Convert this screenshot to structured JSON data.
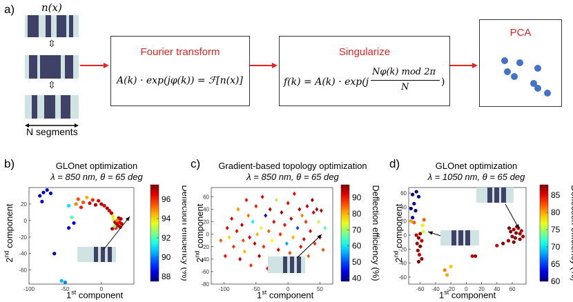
{
  "panel_a": {
    "label": "a)",
    "nx_label": "n(x)",
    "segments_label": "N segments",
    "box1_title": "Fourier transform",
    "box1_formula": "A(k) · exp(jφ(k)) = ℱ[n(x)]",
    "box2_title": "Singularize",
    "box2_formula_left": "f(k) = A(k) · exp(j",
    "box2_formula_num": "Nφ(k) mod 2π",
    "box2_formula_den": "N",
    "box2_formula_right": ")",
    "box3_title": "PCA",
    "colors": {
      "accent_red": "#e8231f",
      "pca_dot": "#4472c4",
      "stripe_dark": "#3f4266",
      "stripe_light": "#cfe3e3"
    }
  },
  "panel_b": {
    "label": "b)",
    "title1": "GLOnet optimization",
    "title2": "λ = 850 nm, θ = 65 deg",
    "xlabel_main": "1",
    "xlabel_sup": "st",
    "xlabel_rest": " component",
    "ylabel_main": "2",
    "ylabel_sup": "nd",
    "ylabel_rest": " component",
    "cbar_label": "Deflection efficiency (%)"
  },
  "panel_c": {
    "label": "c)",
    "title1": "Gradient-based topology optimization",
    "title2": "λ = 850 nm, θ = 65 deg",
    "xlabel_main": "1",
    "xlabel_sup": "st",
    "xlabel_rest": " component",
    "ylabel_main": "2",
    "ylabel_sup": "nd",
    "ylabel_rest": " component",
    "cbar_label": "Deflection efficiency (%)"
  },
  "panel_d": {
    "label": "d)",
    "title1": "GLOnet optimization",
    "title2": "λ = 1050 nm, θ = 65 deg",
    "xlabel_main": "1",
    "xlabel_sup": "st",
    "xlabel_rest": " component",
    "ylabel_main": "2",
    "ylabel_sup": "nd",
    "ylabel_rest": " component",
    "cbar_label": "Deflection efficiency (%)"
  },
  "chart_data": [
    {
      "type": "scatter",
      "panel": "b",
      "marker": "circle",
      "xticks": [
        -100,
        -50,
        0
      ],
      "yticks": [
        -60,
        -40,
        -20,
        0,
        20
      ],
      "xlim": [
        -100,
        45
      ],
      "ylim": [
        -77,
        40
      ],
      "colorbar": {
        "ticks": [
          88,
          90,
          92,
          94,
          96
        ],
        "range": [
          87.5,
          97.5
        ]
      },
      "points": [
        {
          "x": -85,
          "y": 30,
          "c": 88
        },
        {
          "x": -80,
          "y": 34,
          "c": 88
        },
        {
          "x": -75,
          "y": 37,
          "c": 88.2
        },
        {
          "x": -82,
          "y": 23,
          "c": 88.5
        },
        {
          "x": -70,
          "y": 33,
          "c": 88.3
        },
        {
          "x": -65,
          "y": -40,
          "c": 88
        },
        {
          "x": -55,
          "y": -73,
          "c": 90.5
        },
        {
          "x": -50,
          "y": -75,
          "c": 90
        },
        {
          "x": -45,
          "y": -9,
          "c": 88.4
        },
        {
          "x": -45,
          "y": 18,
          "c": 91
        },
        {
          "x": -41,
          "y": 4,
          "c": 92
        },
        {
          "x": -38,
          "y": -3,
          "c": 88.5
        },
        {
          "x": -35,
          "y": 20,
          "c": 95
        },
        {
          "x": -32,
          "y": 26,
          "c": 95.5
        },
        {
          "x": -28,
          "y": 16,
          "c": 96
        },
        {
          "x": -25,
          "y": 22,
          "c": 95.5
        },
        {
          "x": -20,
          "y": 28,
          "c": 94.5
        },
        {
          "x": -16,
          "y": 21,
          "c": 96.5
        },
        {
          "x": -12,
          "y": 25,
          "c": 96
        },
        {
          "x": -8,
          "y": 19,
          "c": 97
        },
        {
          "x": -4,
          "y": 24,
          "c": 96.5
        },
        {
          "x": 0,
          "y": 20,
          "c": 97
        },
        {
          "x": 4,
          "y": 18,
          "c": 96.7
        },
        {
          "x": 8,
          "y": 15,
          "c": 97
        },
        {
          "x": 11,
          "y": 12,
          "c": 96.5
        },
        {
          "x": 14,
          "y": 9,
          "c": 97
        },
        {
          "x": 16,
          "y": 5,
          "c": 94
        },
        {
          "x": 17,
          "y": 1,
          "c": 93
        },
        {
          "x": 19,
          "y": -2,
          "c": 96.8
        },
        {
          "x": 21,
          "y": -4,
          "c": 97
        },
        {
          "x": 23,
          "y": -6,
          "c": 97
        },
        {
          "x": 25,
          "y": -2,
          "c": 96.5
        },
        {
          "x": 26,
          "y": -8,
          "c": 97
        },
        {
          "x": 24,
          "y": 3,
          "c": 97
        },
        {
          "x": 28,
          "y": -4,
          "c": 96.8
        },
        {
          "x": 20,
          "y": -9,
          "c": 96
        },
        {
          "x": 27,
          "y": 2,
          "c": 97
        },
        {
          "x": 18,
          "y": -7,
          "c": 92.5
        },
        {
          "x": 22,
          "y": 0,
          "c": 95
        },
        {
          "x": 15,
          "y": -10,
          "c": 97
        }
      ]
    },
    {
      "type": "scatter",
      "panel": "c",
      "marker": "diamond",
      "xticks": [
        -100,
        -50,
        0,
        50
      ],
      "yticks": [
        -80,
        -60,
        -40,
        -20,
        0,
        20,
        40,
        60
      ],
      "xlim": [
        -120,
        70
      ],
      "ylim": [
        -80,
        75
      ],
      "colorbar": {
        "ticks": [
          40,
          50,
          60,
          70,
          80,
          90
        ],
        "range": [
          38,
          98
        ]
      },
      "points": [
        {
          "x": -105,
          "y": -10,
          "c": 85
        },
        {
          "x": -98,
          "y": -35,
          "c": 90
        },
        {
          "x": -95,
          "y": 10,
          "c": 92
        },
        {
          "x": -92,
          "y": -5,
          "c": 78
        },
        {
          "x": -88,
          "y": 25,
          "c": 92
        },
        {
          "x": -85,
          "y": -20,
          "c": 88
        },
        {
          "x": -80,
          "y": 5,
          "c": 91
        },
        {
          "x": -78,
          "y": 40,
          "c": 82
        },
        {
          "x": -75,
          "y": -40,
          "c": 93
        },
        {
          "x": -72,
          "y": 15,
          "c": 95
        },
        {
          "x": -70,
          "y": -10,
          "c": 86
        },
        {
          "x": -68,
          "y": -28,
          "c": 80
        },
        {
          "x": -65,
          "y": 55,
          "c": 90
        },
        {
          "x": -62,
          "y": 30,
          "c": 84
        },
        {
          "x": -60,
          "y": -5,
          "c": 92
        },
        {
          "x": -58,
          "y": -50,
          "c": 88
        },
        {
          "x": -55,
          "y": 20,
          "c": 60
        },
        {
          "x": -52,
          "y": -15,
          "c": 94
        },
        {
          "x": -50,
          "y": 45,
          "c": 89
        },
        {
          "x": -48,
          "y": 0,
          "c": 80
        },
        {
          "x": -45,
          "y": -35,
          "c": 95
        },
        {
          "x": -42,
          "y": 10,
          "c": 73
        },
        {
          "x": -40,
          "y": 60,
          "c": 92
        },
        {
          "x": -38,
          "y": -20,
          "c": 88
        },
        {
          "x": -35,
          "y": 30,
          "c": 45
        },
        {
          "x": -32,
          "y": -55,
          "c": 90
        },
        {
          "x": -30,
          "y": 5,
          "c": 85
        },
        {
          "x": -28,
          "y": 40,
          "c": 94
        },
        {
          "x": -25,
          "y": -10,
          "c": 75
        },
        {
          "x": -22,
          "y": 20,
          "c": 91
        },
        {
          "x": -20,
          "y": -40,
          "c": 86
        },
        {
          "x": -18,
          "y": 55,
          "c": 70
        },
        {
          "x": -15,
          "y": -25,
          "c": 93
        },
        {
          "x": -12,
          "y": 0,
          "c": 88
        },
        {
          "x": -10,
          "y": 35,
          "c": 96
        },
        {
          "x": -8,
          "y": -60,
          "c": 82
        },
        {
          "x": -5,
          "y": 15,
          "c": 90
        },
        {
          "x": -2,
          "y": -15,
          "c": 55
        },
        {
          "x": 0,
          "y": 50,
          "c": 92
        },
        {
          "x": 3,
          "y": -30,
          "c": 87
        },
        {
          "x": 5,
          "y": 25,
          "c": 94
        },
        {
          "x": 8,
          "y": -5,
          "c": 80
        },
        {
          "x": 10,
          "y": 65,
          "c": 91
        },
        {
          "x": 12,
          "y": -45,
          "c": 89
        },
        {
          "x": 15,
          "y": 10,
          "c": 50
        },
        {
          "x": 18,
          "y": 40,
          "c": 95
        },
        {
          "x": 20,
          "y": -20,
          "c": 90
        },
        {
          "x": 22,
          "y": 30,
          "c": 83
        },
        {
          "x": 25,
          "y": -8,
          "c": 92
        },
        {
          "x": 28,
          "y": 20,
          "c": 88
        },
        {
          "x": 30,
          "y": 45,
          "c": 94
        },
        {
          "x": 32,
          "y": -35,
          "c": 85
        },
        {
          "x": 35,
          "y": 5,
          "c": 91
        },
        {
          "x": 38,
          "y": 55,
          "c": 96
        },
        {
          "x": 40,
          "y": 35,
          "c": 93
        },
        {
          "x": 42,
          "y": -15,
          "c": 88
        },
        {
          "x": 45,
          "y": 40,
          "c": 95
        },
        {
          "x": 48,
          "y": 20,
          "c": 72
        },
        {
          "x": 50,
          "y": -5,
          "c": 90
        },
        {
          "x": 52,
          "y": 38,
          "c": 94
        },
        {
          "x": 55,
          "y": -25,
          "c": 86
        },
        {
          "x": 58,
          "y": 10,
          "c": 65
        }
      ]
    },
    {
      "type": "scatter",
      "panel": "d",
      "marker": "circle",
      "xticks": [
        -60,
        -40,
        -20,
        0,
        20,
        40,
        60
      ],
      "yticks": [
        -60,
        -40,
        -20,
        0,
        20,
        40,
        60
      ],
      "xlim": [
        -75,
        78
      ],
      "ylim": [
        -70,
        68
      ],
      "colorbar": {
        "ticks": [
          60,
          65,
          70,
          75,
          80,
          85
        ],
        "range": [
          60,
          88
        ]
      },
      "points": [
        {
          "x": -70,
          "y": 58,
          "c": 60
        },
        {
          "x": -65,
          "y": 62,
          "c": 60
        },
        {
          "x": -62,
          "y": 55,
          "c": 61
        },
        {
          "x": -68,
          "y": 45,
          "c": 61
        },
        {
          "x": -72,
          "y": 38,
          "c": 60
        },
        {
          "x": -66,
          "y": 35,
          "c": 60
        },
        {
          "x": -70,
          "y": 25,
          "c": 62
        },
        {
          "x": -72,
          "y": 20,
          "c": 80
        },
        {
          "x": -68,
          "y": 18,
          "c": 82
        },
        {
          "x": -55,
          "y": 22,
          "c": 82
        },
        {
          "x": -57,
          "y": 14,
          "c": 78
        },
        {
          "x": -56,
          "y": 5,
          "c": 76
        },
        {
          "x": -65,
          "y": 0,
          "c": 86
        },
        {
          "x": -62,
          "y": -4,
          "c": 88
        },
        {
          "x": -60,
          "y": 2,
          "c": 87
        },
        {
          "x": -58,
          "y": -8,
          "c": 86
        },
        {
          "x": -64,
          "y": -12,
          "c": 87
        },
        {
          "x": -60,
          "y": -16,
          "c": 88
        },
        {
          "x": -63,
          "y": -22,
          "c": 87
        },
        {
          "x": -61,
          "y": -28,
          "c": 86
        },
        {
          "x": -58,
          "y": -34,
          "c": 87
        },
        {
          "x": -62,
          "y": -38,
          "c": 88
        },
        {
          "x": -28,
          "y": -50,
          "c": 81
        },
        {
          "x": -25,
          "y": -57,
          "c": 80
        },
        {
          "x": -20,
          "y": -45,
          "c": 79
        },
        {
          "x": -12,
          "y": -8,
          "c": 84
        },
        {
          "x": 8,
          "y": -30,
          "c": 86
        },
        {
          "x": 12,
          "y": -30,
          "c": 87
        },
        {
          "x": 40,
          "y": -15,
          "c": 86
        },
        {
          "x": 48,
          "y": -12,
          "c": 88
        },
        {
          "x": 55,
          "y": -8,
          "c": 87
        },
        {
          "x": 58,
          "y": 5,
          "c": 88
        },
        {
          "x": 62,
          "y": 8,
          "c": 87
        },
        {
          "x": 65,
          "y": 3,
          "c": 88
        },
        {
          "x": 68,
          "y": 10,
          "c": 86
        },
        {
          "x": 70,
          "y": 2,
          "c": 87
        },
        {
          "x": 64,
          "y": -4,
          "c": 88
        },
        {
          "x": 60,
          "y": -2,
          "c": 87
        },
        {
          "x": 72,
          "y": 6,
          "c": 86
        },
        {
          "x": 66,
          "y": 12,
          "c": 85
        },
        {
          "x": 62,
          "y": -10,
          "c": 88
        },
        {
          "x": 70,
          "y": -6,
          "c": 87
        },
        {
          "x": 56,
          "y": 10,
          "c": 88
        },
        {
          "x": 74,
          "y": -2,
          "c": 87
        }
      ]
    }
  ]
}
